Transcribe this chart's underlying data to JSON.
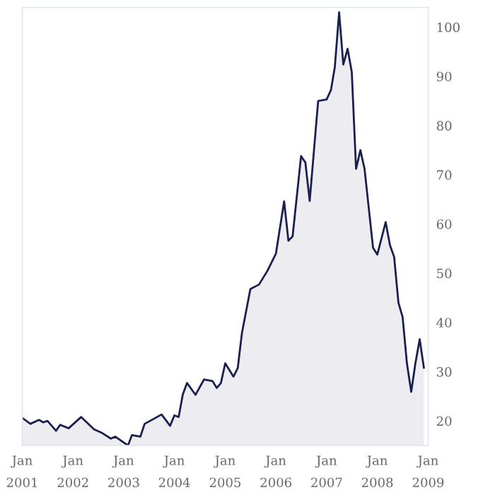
{
  "chart_data": {
    "type": "area",
    "x": [
      "2001-01",
      "2001-03",
      "2001-05",
      "2001-06",
      "2001-07",
      "2001-09",
      "2001-10",
      "2001-12",
      "2002-03",
      "2002-06",
      "2002-08",
      "2002-10",
      "2002-11",
      "2003-02",
      "2003-03",
      "2003-05",
      "2003-06",
      "2003-10",
      "2003-12",
      "2004-01",
      "2004-02",
      "2004-03",
      "2004-04",
      "2004-06",
      "2004-08",
      "2004-10",
      "2004-11",
      "2004-12",
      "2005-01",
      "2005-03",
      "2005-04",
      "2005-05",
      "2005-07",
      "2005-09",
      "2005-11",
      "2006-01",
      "2006-03",
      "2006-04",
      "2006-05",
      "2006-07",
      "2006-08",
      "2006-09",
      "2006-11",
      "2007-01",
      "2007-02",
      "2007-03",
      "2007-04",
      "2007-05",
      "2007-06",
      "2007-07",
      "2007-08",
      "2007-09",
      "2007-10",
      "2007-12",
      "2008-01",
      "2008-03",
      "2008-04",
      "2008-05",
      "2008-06",
      "2008-07",
      "2008-08",
      "2008-09",
      "2008-10",
      "2008-11",
      "2008-12"
    ],
    "series": [
      {
        "color": "#1b1f4f",
        "values": [
          20.6,
          19.4,
          20.2,
          19.7,
          20,
          18,
          19.2,
          18.5,
          20.8,
          18.3,
          17.5,
          16.4,
          16.8,
          15,
          17.1,
          16.8,
          19.4,
          21.3,
          19,
          21.1,
          20.8,
          25.3,
          27.7,
          25.3,
          28.4,
          28.1,
          26.7,
          27.7,
          31.7,
          29,
          30.7,
          37.8,
          46.8,
          47.7,
          50.5,
          54,
          64.6,
          56.6,
          57.5,
          73.8,
          72.5,
          64.7,
          85,
          85.3,
          87.2,
          91.9,
          103,
          92.4,
          95.6,
          90.9,
          71.2,
          75,
          71.2,
          55.2,
          53.8,
          60.4,
          55.7,
          53.3,
          44,
          41.1,
          31.7,
          25.9,
          31.7,
          36.6,
          30.8
        ]
      }
    ],
    "xlim": [
      "2001-01",
      "2009-01"
    ],
    "ylim": [
      15,
      104
    ],
    "yticks": [
      20,
      30,
      40,
      50,
      60,
      70,
      80,
      90,
      100
    ],
    "xticks": [
      {
        "value": "2001-01",
        "label": "Jan\n2001"
      },
      {
        "value": "2002-01",
        "label": "Jan\n2002"
      },
      {
        "value": "2003-01",
        "label": "Jan\n2003"
      },
      {
        "value": "2004-01",
        "label": "Jan\n2004"
      },
      {
        "value": "2005-01",
        "label": "Jan\n2005"
      },
      {
        "value": "2006-01",
        "label": "Jan\n2006"
      },
      {
        "value": "2007-01",
        "label": "Jan\n2007"
      },
      {
        "value": "2008-01",
        "label": "Jan\n2008"
      },
      {
        "value": "2009-01",
        "label": "Jan\n2009"
      }
    ],
    "grid": false,
    "legend": false
  }
}
